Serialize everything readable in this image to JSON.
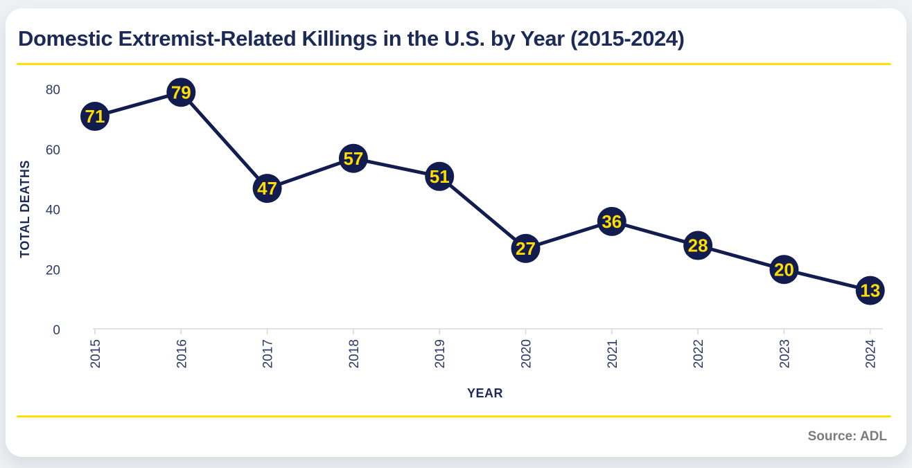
{
  "header": {
    "title": "Domestic Extremist-Related Killings in the U.S. by Year (2015-2024)"
  },
  "footer": {
    "source": "Source: ADL"
  },
  "colors": {
    "accent_yellow": "#ffe100",
    "title_navy": "#1c2a57",
    "page_bg": "#eef0f3",
    "card_bg": "#ffffff",
    "source_gray": "#7b7b7b"
  },
  "chart_data": {
    "type": "line",
    "title": "Domestic Extremist-Related Killings in the U.S. by Year (2015-2024)",
    "categories": [
      "2015",
      "2016",
      "2017",
      "2018",
      "2019",
      "2020",
      "2021",
      "2022",
      "2023",
      "2024"
    ],
    "values": [
      71,
      79,
      47,
      57,
      51,
      27,
      36,
      28,
      20,
      13
    ],
    "xlabel": "YEAR",
    "ylabel": "TOTAL DEATHS",
    "yticks": [
      0,
      20,
      40,
      60,
      80
    ],
    "ylim": [
      0,
      80
    ],
    "grid": false,
    "legend": "none",
    "marker_labels_visible": true,
    "colors": {
      "series_line": "#131c4e",
      "marker_fill": "#131c4e",
      "marker_label": "#ffdd00",
      "axis_line": "#d9d9d9",
      "tick_text": "#2b3a67",
      "axis_title_text": "#1c2a57"
    }
  }
}
